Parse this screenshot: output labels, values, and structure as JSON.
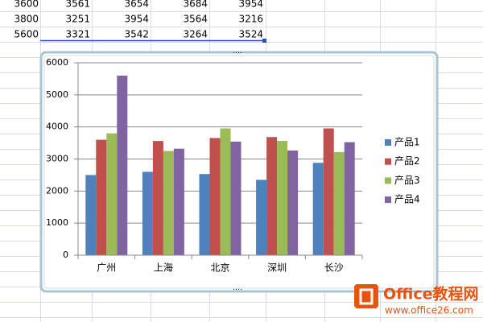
{
  "spreadsheet": {
    "rows": [
      [
        "3600",
        "3561",
        "3654",
        "3684",
        "3954"
      ],
      [
        "3800",
        "3251",
        "3954",
        "3564",
        "3216"
      ],
      [
        "5600",
        "3321",
        "3542",
        "3264",
        "3524"
      ]
    ]
  },
  "chart_data": {
    "type": "bar",
    "categories": [
      "广州",
      "上海",
      "北京",
      "深圳",
      "长沙"
    ],
    "series": [
      {
        "name": "产品1",
        "color": "#4f81bd",
        "values": [
          2500,
          2600,
          2530,
          2350,
          2880
        ]
      },
      {
        "name": "产品2",
        "color": "#c0504d",
        "values": [
          3600,
          3561,
          3654,
          3684,
          3954
        ]
      },
      {
        "name": "产品3",
        "color": "#9bbb59",
        "values": [
          3800,
          3251,
          3954,
          3564,
          3216
        ]
      },
      {
        "name": "产品4",
        "color": "#8064a2",
        "values": [
          5600,
          3321,
          3542,
          3264,
          3524
        ]
      }
    ],
    "ylim": [
      0,
      6000
    ],
    "yticks": [
      0,
      1000,
      2000,
      3000,
      4000,
      5000,
      6000
    ],
    "grid": true,
    "legend": "right"
  },
  "watermark": {
    "brand": "Office教程网",
    "url": "www.office26.com"
  }
}
